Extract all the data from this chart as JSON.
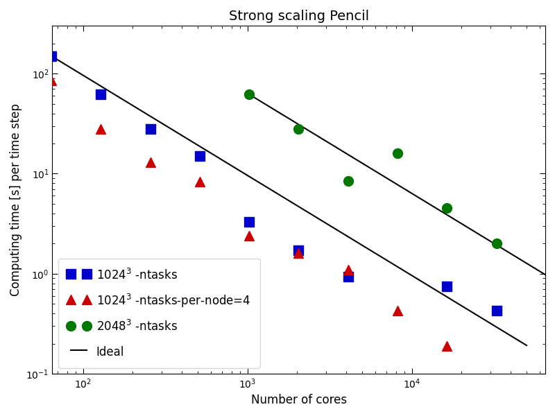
{
  "title": "Strong scaling Pencil",
  "xlabel": "Number of cores",
  "ylabel": "Computing time [s] per time step",
  "xlim": [
    65,
    65000
  ],
  "ylim": [
    0.1,
    300
  ],
  "blue_x": [
    64,
    128,
    256,
    512,
    1024,
    2048,
    4096,
    16384,
    32768
  ],
  "blue_y": [
    150,
    62,
    28,
    15,
    3.3,
    1.7,
    0.93,
    0.75,
    0.43
  ],
  "red_x": [
    64,
    128,
    256,
    512,
    1024,
    2048,
    4096,
    8192,
    16384
  ],
  "red_y": [
    85,
    28,
    13,
    8.3,
    2.4,
    1.6,
    1.1,
    0.43,
    0.19
  ],
  "green_x": [
    1024,
    2048,
    4096,
    8192,
    16384,
    32768
  ],
  "green_y": [
    62,
    28,
    8.5,
    16,
    4.5,
    2.0
  ],
  "blue_color": "#0000cc",
  "red_color": "#cc0000",
  "green_color": "#007700",
  "ideal_color": "#000000",
  "marker_size": 10,
  "title_fontsize": 14,
  "label_fontsize": 12,
  "legend_fontsize": 12
}
